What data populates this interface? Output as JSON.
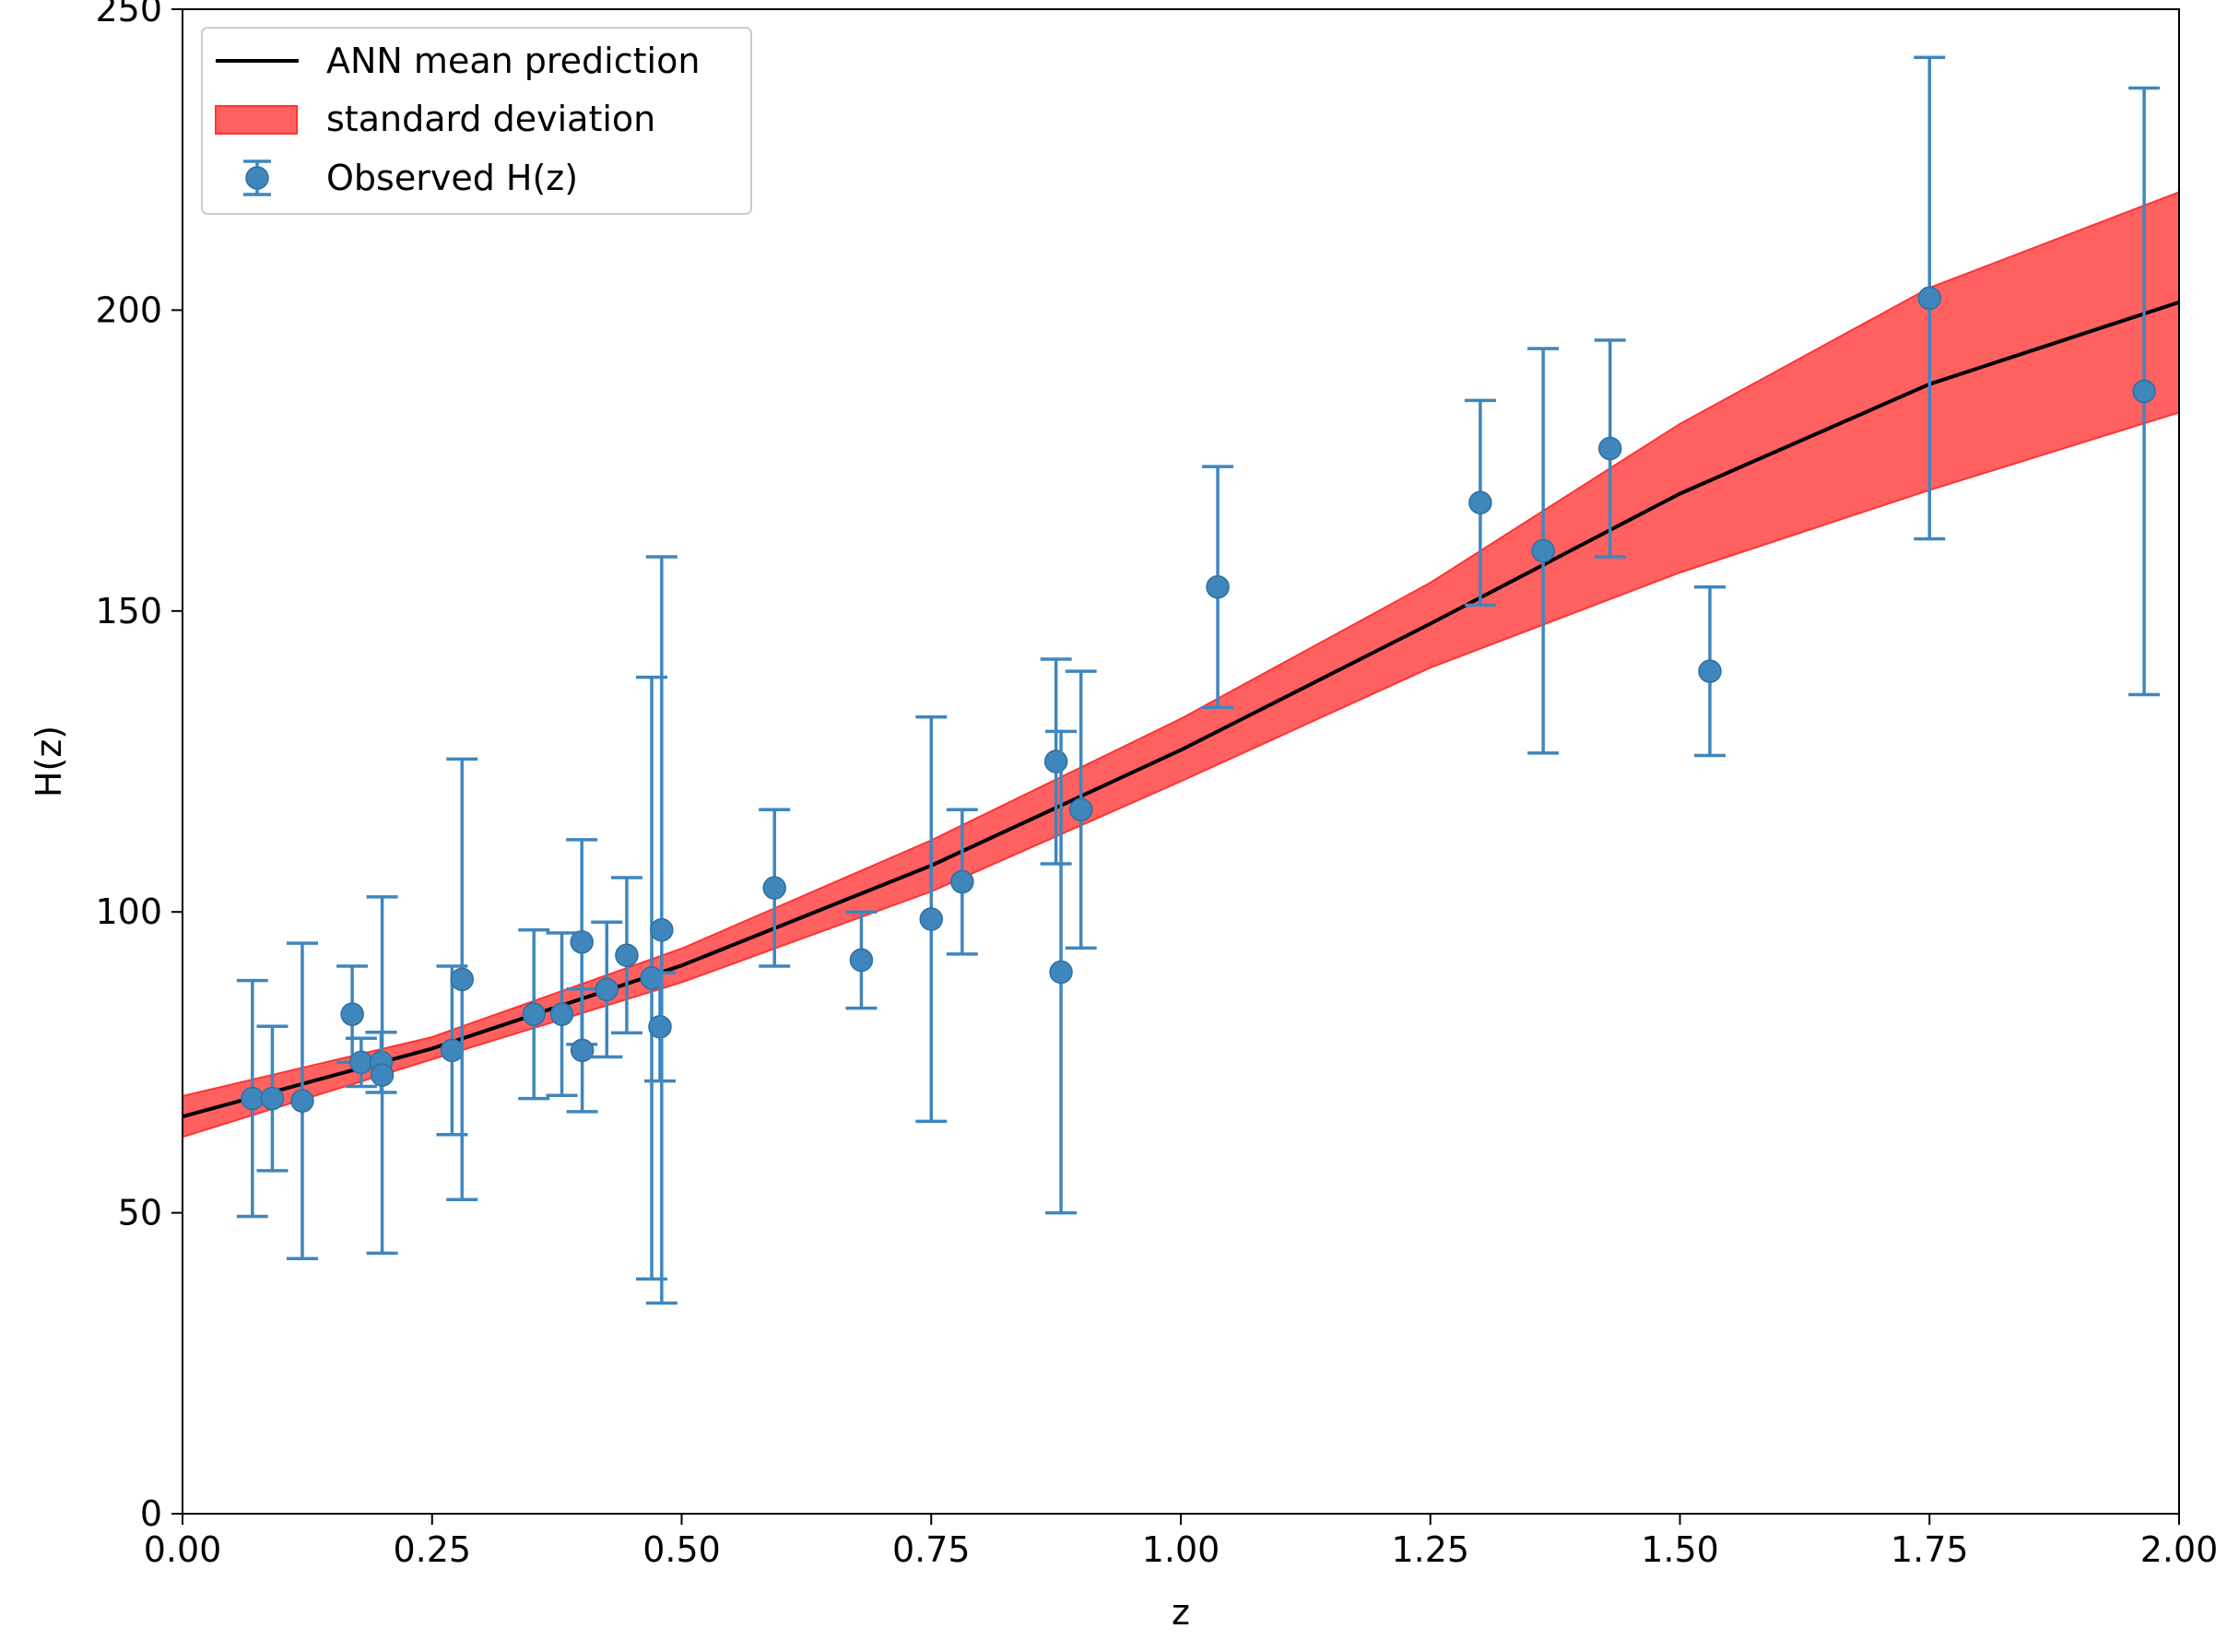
{
  "chart_data": {
    "type": "scatter",
    "title": "",
    "xlabel": "z",
    "ylabel": "H(z)",
    "xlim": [
      0.0,
      2.0
    ],
    "ylim": [
      0,
      250
    ],
    "grid": false,
    "legend_position": "top-left",
    "x_ticks": [
      "0.00",
      "0.25",
      "0.50",
      "0.75",
      "1.00",
      "1.25",
      "1.50",
      "1.75",
      "2.00"
    ],
    "y_ticks": [
      "0",
      "50",
      "100",
      "150",
      "200",
      "250"
    ],
    "legend": {
      "mean_label": "ANN mean prediction",
      "band_label": "standard deviation",
      "obs_label": "Observed H(z)"
    },
    "colors": {
      "mean_line": "#000000",
      "band_fill": "#ff6161",
      "band_edge": "#ff3333",
      "observations": "#3f86bd"
    },
    "mean_prediction": {
      "z": [
        0.0,
        0.25,
        0.5,
        0.75,
        1.0,
        1.25,
        1.5,
        1.75,
        2.0
      ],
      "H": [
        66,
        77.3,
        91.1,
        107.7,
        126.9,
        147.9,
        169.5,
        187.7,
        201.3
      ],
      "lower": [
        62.6,
        75.5,
        88.3,
        103.4,
        121.7,
        140.6,
        156.4,
        170.1,
        183.0
      ],
      "upper": [
        69.4,
        79.2,
        93.9,
        111.9,
        132.1,
        154.7,
        181.1,
        203.7,
        219.6
      ]
    },
    "observations": [
      {
        "z": 0.07,
        "H": 69.0,
        "err": 19.6
      },
      {
        "z": 0.09,
        "H": 69.0,
        "err": 12.0
      },
      {
        "z": 0.12,
        "H": 68.6,
        "err": 26.2
      },
      {
        "z": 0.17,
        "H": 83.0,
        "err": 8.0
      },
      {
        "z": 0.179,
        "H": 75.0,
        "err": 4.0
      },
      {
        "z": 0.199,
        "H": 75.0,
        "err": 5.0
      },
      {
        "z": 0.2,
        "H": 72.9,
        "err": 29.6
      },
      {
        "z": 0.27,
        "H": 77.0,
        "err": 14.0
      },
      {
        "z": 0.28,
        "H": 88.8,
        "err": 36.6
      },
      {
        "z": 0.352,
        "H": 83.0,
        "err": 14.0
      },
      {
        "z": 0.38,
        "H": 83.0,
        "err": 13.5
      },
      {
        "z": 0.4,
        "H": 95.0,
        "err": 17.0
      },
      {
        "z": 0.4004,
        "H": 77.0,
        "err": 10.2
      },
      {
        "z": 0.425,
        "H": 87.1,
        "err": 11.2
      },
      {
        "z": 0.445,
        "H": 92.8,
        "err": 12.9
      },
      {
        "z": 0.47,
        "H": 89.0,
        "err": 50.0
      },
      {
        "z": 0.4783,
        "H": 80.9,
        "err": 9.0
      },
      {
        "z": 0.48,
        "H": 97.0,
        "err": 62.0
      },
      {
        "z": 0.593,
        "H": 104.0,
        "err": 13.0
      },
      {
        "z": 0.68,
        "H": 92.0,
        "err": 8.0
      },
      {
        "z": 0.75,
        "H": 98.8,
        "err": 33.6
      },
      {
        "z": 0.781,
        "H": 105.0,
        "err": 12.0
      },
      {
        "z": 0.875,
        "H": 125.0,
        "err": 17.0
      },
      {
        "z": 0.88,
        "H": 90.0,
        "err": 40.0
      },
      {
        "z": 0.9,
        "H": 117.0,
        "err": 23.0
      },
      {
        "z": 1.037,
        "H": 154.0,
        "err": 20.0
      },
      {
        "z": 1.3,
        "H": 168.0,
        "err": 17.0
      },
      {
        "z": 1.363,
        "H": 160.0,
        "err": 33.6
      },
      {
        "z": 1.43,
        "H": 177.0,
        "err": 18.0
      },
      {
        "z": 1.53,
        "H": 140.0,
        "err": 14.0
      },
      {
        "z": 1.75,
        "H": 202.0,
        "err": 40.0
      },
      {
        "z": 1.965,
        "H": 186.5,
        "err": 50.4
      }
    ]
  }
}
